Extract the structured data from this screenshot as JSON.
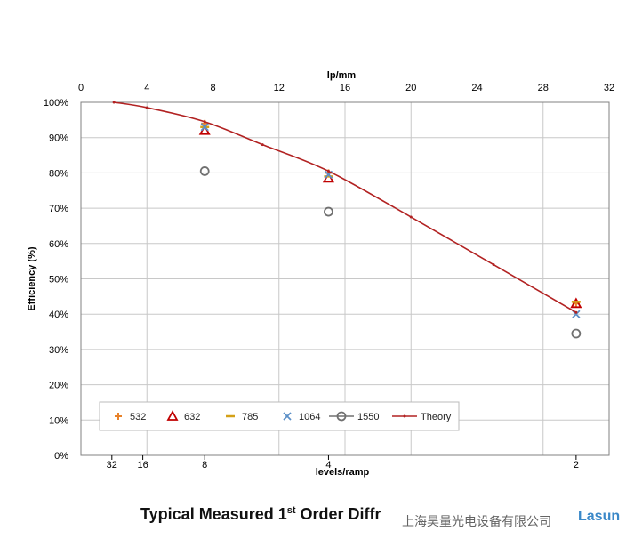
{
  "chart_data": {
    "type": "scatter",
    "top_axis": {
      "label": "lp/mm",
      "ticks": [
        0,
        4,
        8,
        12,
        16,
        20,
        24,
        28,
        32
      ],
      "range": [
        0,
        32
      ]
    },
    "bottom_axis": {
      "label": "levels/ramp",
      "ticks": [
        32,
        16,
        8,
        4,
        2
      ]
    },
    "y_axis": {
      "label": "Efficiency (%)",
      "range": [
        0,
        100
      ],
      "ticks": [
        "0%",
        "10%",
        "20%",
        "30%",
        "40%",
        "50%",
        "60%",
        "70%",
        "80%",
        "90%",
        "100%"
      ]
    },
    "grid": true,
    "legend_position": "bottom-left",
    "series": [
      {
        "name": "532",
        "marker": "plus",
        "color": "#e8822a",
        "points": [
          [
            7.5,
            94
          ],
          [
            15,
            80
          ],
          [
            30,
            43
          ]
        ]
      },
      {
        "name": "632",
        "marker": "triangle",
        "color": "#c00000",
        "points": [
          [
            7.5,
            92
          ],
          [
            15,
            78.5
          ],
          [
            30,
            43
          ]
        ]
      },
      {
        "name": "785",
        "marker": "dash",
        "color": "#d4a017",
        "points": [
          [
            7.5,
            93
          ],
          [
            15,
            79
          ],
          [
            30,
            43.5
          ]
        ]
      },
      {
        "name": "1064",
        "marker": "x",
        "color": "#5b8fc7",
        "points": [
          [
            7.5,
            93
          ],
          [
            15,
            79.5
          ],
          [
            30,
            40
          ]
        ]
      },
      {
        "name": "1550",
        "marker": "circle",
        "color": "#707070",
        "points": [
          [
            7.5,
            80.5
          ],
          [
            15,
            69
          ],
          [
            30,
            34.5
          ]
        ]
      },
      {
        "name": "Theory",
        "marker": "line",
        "color": "#b22222",
        "points": [
          [
            2,
            100
          ],
          [
            4,
            98.5
          ],
          [
            7.5,
            94.5
          ],
          [
            11,
            88
          ],
          [
            15,
            80.5
          ],
          [
            20,
            67.5
          ],
          [
            25,
            54
          ],
          [
            30,
            40.5
          ]
        ]
      }
    ]
  },
  "caption": {
    "prefix": "Typical Measured 1",
    "superscript": "st",
    "suffix": " Order Diffr"
  },
  "watermark": {
    "text": "上海昊量光电设备有限公司",
    "logo_text": "Lasun"
  },
  "colors": {
    "grid": "#c8c8c8",
    "frame": "#808080",
    "theory": "#b22222"
  }
}
